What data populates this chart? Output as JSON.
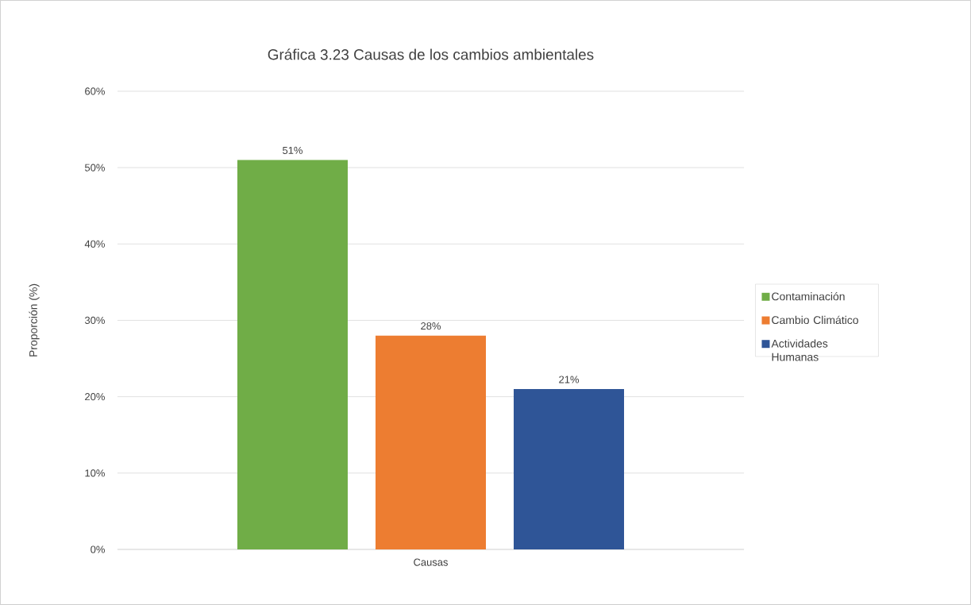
{
  "chart_data": {
    "type": "bar",
    "title": "Gráfica 3.23 Causas de los cambios ambientales",
    "ylabel": "Proporción (%)",
    "categories": [
      "Causas"
    ],
    "series": [
      {
        "name": "Contaminación",
        "color": "#70ad47",
        "values": [
          51
        ],
        "value_labels": [
          "51%"
        ]
      },
      {
        "name": "Cambio Climático",
        "color": "#ed7d31",
        "values": [
          28
        ],
        "value_labels": [
          "28%"
        ]
      },
      {
        "name": "Actividades Humanas",
        "color": "#2f5597",
        "values": [
          21
        ],
        "value_labels": [
          "21%"
        ]
      }
    ],
    "ylim": [
      0,
      60
    ],
    "yticks": [
      {
        "value": 0,
        "label": "0%"
      },
      {
        "value": 10,
        "label": "10%"
      },
      {
        "value": 20,
        "label": "20%"
      },
      {
        "value": 30,
        "label": "30%"
      },
      {
        "value": 40,
        "label": "40%"
      },
      {
        "value": 50,
        "label": "50%"
      },
      {
        "value": 60,
        "label": "60%"
      }
    ],
    "grid": "y",
    "legend": "right"
  }
}
